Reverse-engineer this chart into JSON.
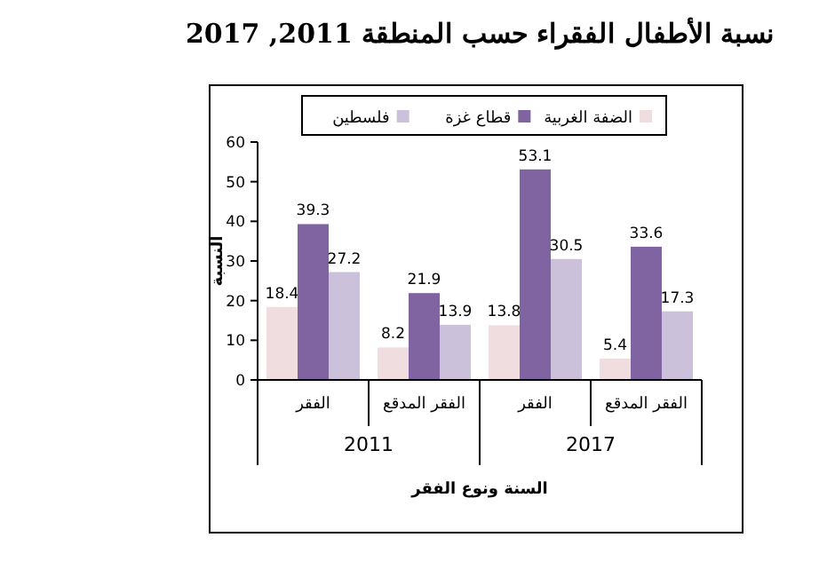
{
  "chart_data": {
    "type": "bar",
    "title": "نسبة الأطفال الفقراء حسب المنطقة 2011, 2017",
    "xlabel": "السنة ونوع الفقر",
    "ylabel": "النسبة",
    "categories": [
      "الفقر",
      "الفقر المدقع",
      "الفقر",
      "الفقر المدقع"
    ],
    "series": [
      {
        "name": "الضفة الغربية",
        "color": "#f0dde0",
        "values": [
          18.4,
          8.2,
          13.8,
          5.4
        ]
      },
      {
        "name": "قطاع غزة",
        "color": "#8064a2",
        "values": [
          39.3,
          21.9,
          53.1,
          33.6
        ]
      },
      {
        "name": "فلسطين",
        "color": "#ccc1da",
        "values": [
          27.2,
          13.9,
          30.5,
          17.3
        ]
      }
    ],
    "ylim": [
      0,
      60
    ],
    "yticks": [
      0,
      10,
      20,
      30,
      40,
      50,
      60
    ],
    "data_labels": true,
    "legend": "top",
    "grid": false,
    "annotations": [
      "2011",
      "2017"
    ]
  }
}
